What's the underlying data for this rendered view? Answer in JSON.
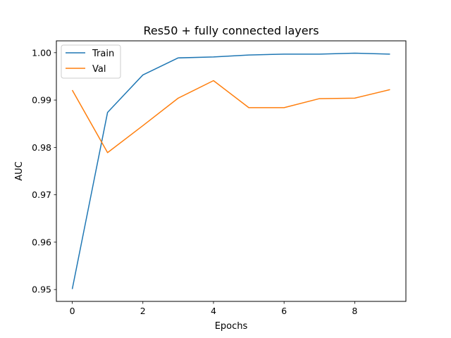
{
  "chart_data": {
    "type": "line",
    "title": "Res50 + fully connected layers",
    "xlabel": "Epochs",
    "ylabel": "AUC",
    "x": [
      0,
      1,
      2,
      3,
      4,
      5,
      6,
      7,
      8,
      9
    ],
    "xlim": [
      -0.45,
      9.45
    ],
    "ylim": [
      0.9475,
      1.0025
    ],
    "xticks": [
      0,
      2,
      4,
      6,
      8
    ],
    "yticks": [
      0.95,
      0.96,
      0.97,
      0.98,
      0.99,
      1.0
    ],
    "ytick_labels": [
      "0.95",
      "0.96",
      "0.97",
      "0.98",
      "0.99",
      "1.00"
    ],
    "grid": false,
    "legend_position": "top-left",
    "series": [
      {
        "name": "Train",
        "color": "#1f77b4",
        "values": [
          0.9501,
          0.9874,
          0.9953,
          0.9989,
          0.9991,
          0.9995,
          0.9997,
          0.9997,
          0.9999,
          0.9997
        ]
      },
      {
        "name": "Val",
        "color": "#ff7f0e",
        "values": [
          0.9921,
          0.9789,
          0.9846,
          0.9904,
          0.9941,
          0.9884,
          0.9884,
          0.9903,
          0.9904,
          0.9922
        ]
      }
    ]
  }
}
